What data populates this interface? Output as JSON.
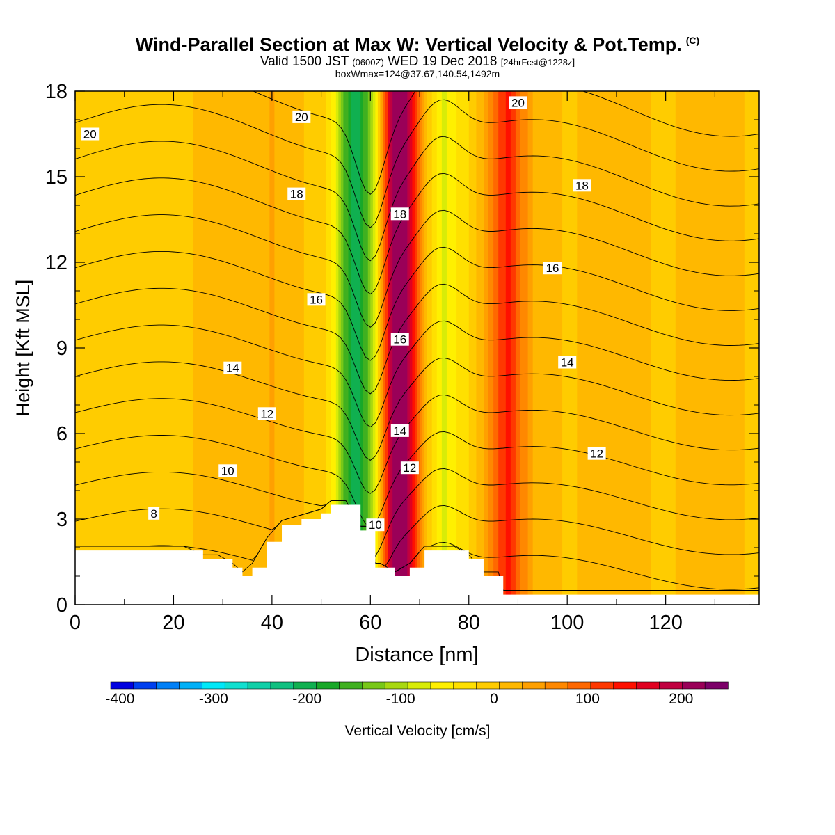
{
  "chart_data": {
    "type": "heatmap",
    "title": "Wind-Parallel Section at Max W: Vertical Velocity & Pot.Temp.",
    "title_unit": "(C)",
    "subtitle": {
      "valid": "Valid 1500 JST",
      "utc": "(0600Z)",
      "date": "WED 19 Dec 2018",
      "forecast": "[24hrFcst@1228z]"
    },
    "box_info": "boxWmax=124@37.67,140.54,1492m",
    "xlabel": "Distance [nm]",
    "ylabel": "Height [Kft MSL]",
    "xlim": [
      0,
      139
    ],
    "ylim": [
      0,
      18
    ],
    "x_ticks": [
      "0",
      "20",
      "40",
      "60",
      "80",
      "100",
      "120"
    ],
    "y_ticks": [
      "0",
      "3",
      "6",
      "9",
      "12",
      "15",
      "18"
    ],
    "colorbar": {
      "label": "Vertical Velocity [cm/s]",
      "tick_labels": [
        "-400",
        "-300",
        "-200",
        "-100",
        "0",
        "100",
        "200"
      ],
      "tick_values": [
        -400,
        -300,
        -200,
        -100,
        0,
        100,
        200
      ],
      "min": -410,
      "max": 250,
      "step": 25,
      "colors": [
        "#0000e0",
        "#0040f0",
        "#0080f8",
        "#00b0f8",
        "#00e8f8",
        "#10e0d0",
        "#10d0a8",
        "#10c080",
        "#10b050",
        "#18a828",
        "#40b020",
        "#78c818",
        "#a8d810",
        "#d8ec08",
        "#fff000",
        "#ffe000",
        "#ffcc00",
        "#ffb800",
        "#ffa000",
        "#ff8800",
        "#ff6800",
        "#ff3800",
        "#ff1000",
        "#e00020",
        "#c00040",
        "#9a0058",
        "#7c0068"
      ]
    },
    "vertical_velocity_profile": {
      "x": [
        0,
        10,
        20,
        30,
        35,
        40,
        45,
        50,
        52,
        55,
        57,
        59,
        61,
        63,
        65,
        67,
        69,
        71,
        73,
        75,
        77,
        80,
        83,
        86,
        88,
        90,
        93,
        96,
        100,
        105,
        110,
        115,
        120,
        125,
        130,
        135,
        139
      ],
      "w_cm_s": [
        12,
        14,
        13,
        18,
        28,
        42,
        18,
        6,
        -30,
        -150,
        -210,
        -150,
        -60,
        120,
        240,
        235,
        130,
        30,
        -20,
        -70,
        -40,
        -10,
        40,
        110,
        150,
        100,
        40,
        22,
        12,
        20,
        24,
        18,
        10,
        22,
        26,
        16,
        12
      ]
    },
    "theta_contours": {
      "levels": [
        7,
        8,
        9,
        10,
        11,
        12,
        13,
        14,
        15,
        16,
        17,
        18,
        19,
        20,
        21
      ],
      "labels": [
        {
          "text": "20",
          "x": 3,
          "y": 16.5
        },
        {
          "text": "20",
          "x": 46,
          "y": 17.1
        },
        {
          "text": "20",
          "x": 90,
          "y": 17.6
        },
        {
          "text": "18",
          "x": 45,
          "y": 14.4
        },
        {
          "text": "18",
          "x": 66,
          "y": 13.7
        },
        {
          "text": "18",
          "x": 103,
          "y": 14.7
        },
        {
          "text": "16",
          "x": 49,
          "y": 10.7
        },
        {
          "text": "16",
          "x": 66,
          "y": 9.3
        },
        {
          "text": "16",
          "x": 97,
          "y": 11.8
        },
        {
          "text": "14",
          "x": 32,
          "y": 8.3
        },
        {
          "text": "14",
          "x": 66,
          "y": 6.1
        },
        {
          "text": "14",
          "x": 100,
          "y": 8.5
        },
        {
          "text": "12",
          "x": 39,
          "y": 6.7
        },
        {
          "text": "12",
          "x": 68,
          "y": 4.8
        },
        {
          "text": "12",
          "x": 106,
          "y": 5.3
        },
        {
          "text": "10",
          "x": 31,
          "y": 4.7
        },
        {
          "text": "10",
          "x": 61,
          "y": 2.8
        },
        {
          "text": "8",
          "x": 16,
          "y": 3.2
        }
      ]
    },
    "terrain": {
      "x": [
        0,
        22,
        26,
        29,
        32,
        34,
        36,
        39,
        42,
        46,
        50,
        52,
        55,
        58,
        60,
        61,
        62,
        65,
        68,
        71,
        74,
        77,
        80,
        83,
        86,
        87,
        139
      ],
      "height_kft": [
        1.9,
        1.9,
        1.6,
        1.6,
        1.3,
        1.0,
        1.3,
        2.2,
        2.8,
        3.0,
        3.2,
        3.5,
        3.5,
        2.6,
        2.6,
        1.3,
        1.3,
        1.0,
        1.3,
        1.9,
        1.9,
        1.9,
        1.6,
        1.0,
        1.0,
        0.35,
        0.35
      ]
    }
  }
}
